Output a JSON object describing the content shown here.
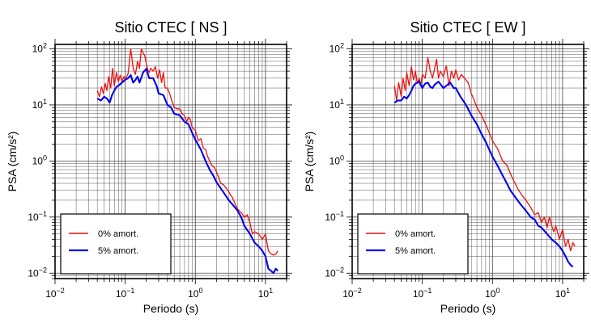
{
  "chart_data": [
    {
      "type": "line",
      "title": "Sitio CTEC [ NS ]",
      "xlabel": "Periodo (s)",
      "ylabel": "PSA (cm/s²)",
      "x_scale": "log",
      "y_scale": "log",
      "xlim": [
        0.01,
        20
      ],
      "ylim": [
        0.008,
        120
      ],
      "grid": true,
      "legend_position": "bottom-left",
      "x_ticks": [
        {
          "value": 0.01,
          "base": "10",
          "exp": "−2"
        },
        {
          "value": 0.1,
          "base": "10",
          "exp": "−1"
        },
        {
          "value": 1,
          "base": "10",
          "exp": "0"
        },
        {
          "value": 10,
          "base": "10",
          "exp": "1"
        }
      ],
      "y_ticks": [
        {
          "value": 0.01,
          "base": "10",
          "exp": "−2"
        },
        {
          "value": 0.1,
          "base": "10",
          "exp": "−1"
        },
        {
          "value": 1,
          "base": "10",
          "exp": "0"
        },
        {
          "value": 10,
          "base": "10",
          "exp": "1"
        },
        {
          "value": 100,
          "base": "10",
          "exp": "2"
        }
      ],
      "series": [
        {
          "name": "0% amort.",
          "color": "#ee1111",
          "x": [
            0.04,
            0.043,
            0.046,
            0.049,
            0.052,
            0.055,
            0.058,
            0.062,
            0.066,
            0.07,
            0.075,
            0.08,
            0.085,
            0.09,
            0.096,
            0.1,
            0.11,
            0.12,
            0.13,
            0.14,
            0.15,
            0.16,
            0.17,
            0.18,
            0.19,
            0.2,
            0.21,
            0.22,
            0.23,
            0.25,
            0.27,
            0.29,
            0.31,
            0.33,
            0.35,
            0.37,
            0.4,
            0.43,
            0.46,
            0.5,
            0.55,
            0.6,
            0.65,
            0.7,
            0.75,
            0.8,
            0.85,
            0.9,
            1.0,
            1.1,
            1.2,
            1.3,
            1.4,
            1.5,
            1.7,
            1.9,
            2.1,
            2.3,
            2.5,
            2.8,
            3.1,
            3.4,
            3.7,
            4.0,
            4.5,
            5.0,
            5.5,
            6.0,
            6.5,
            7.0,
            8.0,
            9.0,
            10.0,
            11.0,
            12.0,
            13.0,
            14.0,
            15.0
          ],
          "y": [
            18,
            14,
            21,
            16,
            24,
            18,
            32,
            20,
            45,
            22,
            38,
            26,
            34,
            26,
            32,
            28,
            36,
            100,
            45,
            35,
            60,
            45,
            100,
            85,
            75,
            55,
            42,
            38,
            45,
            40,
            48,
            30,
            42,
            25,
            38,
            20,
            20,
            16,
            12,
            9,
            8.5,
            8.5,
            7,
            6.5,
            5,
            6,
            5.5,
            4,
            3.5,
            2.3,
            2.5,
            1.7,
            1.6,
            1.2,
            0.85,
            0.75,
            0.55,
            0.4,
            0.38,
            0.32,
            0.26,
            0.22,
            0.17,
            0.14,
            0.12,
            0.1,
            0.11,
            0.08,
            0.05,
            0.055,
            0.05,
            0.04,
            0.05,
            0.025,
            0.022,
            0.021,
            0.022,
            0.025
          ]
        },
        {
          "name": "5% amort.",
          "color": "#0000ee",
          "x": [
            0.04,
            0.045,
            0.05,
            0.055,
            0.06,
            0.065,
            0.07,
            0.075,
            0.08,
            0.09,
            0.1,
            0.11,
            0.12,
            0.13,
            0.14,
            0.15,
            0.16,
            0.18,
            0.2,
            0.22,
            0.25,
            0.28,
            0.3,
            0.35,
            0.4,
            0.45,
            0.5,
            0.6,
            0.7,
            0.8,
            0.9,
            1.0,
            1.2,
            1.4,
            1.6,
            1.8,
            2.0,
            2.5,
            3.0,
            3.5,
            4.0,
            4.5,
            5.0,
            6.0,
            7.0,
            8.0,
            9.0,
            10.0,
            11.0,
            12.0,
            13.0,
            14.0,
            15.0
          ],
          "y": [
            13,
            12,
            14,
            13,
            11,
            15,
            18,
            21,
            22,
            25,
            28,
            30,
            34,
            25,
            28,
            32,
            25,
            38,
            44,
            30,
            30,
            22,
            16,
            15,
            10,
            9,
            7,
            6.5,
            5,
            4.5,
            3.2,
            2.4,
            1.6,
            1.0,
            0.7,
            0.55,
            0.42,
            0.28,
            0.2,
            0.16,
            0.13,
            0.1,
            0.07,
            0.05,
            0.035,
            0.03,
            0.025,
            0.02,
            0.012,
            0.011,
            0.01,
            0.012,
            0.011
          ]
        }
      ]
    },
    {
      "type": "line",
      "title": "Sitio CTEC [ EW ]",
      "xlabel": "Periodo (s)",
      "ylabel": "PSA (cm/s²)",
      "x_scale": "log",
      "y_scale": "log",
      "xlim": [
        0.01,
        20
      ],
      "ylim": [
        0.008,
        120
      ],
      "grid": true,
      "legend_position": "bottom-left",
      "x_ticks": [
        {
          "value": 0.01,
          "base": "10",
          "exp": "−2"
        },
        {
          "value": 0.1,
          "base": "10",
          "exp": "−1"
        },
        {
          "value": 1,
          "base": "10",
          "exp": "0"
        },
        {
          "value": 10,
          "base": "10",
          "exp": "1"
        }
      ],
      "y_ticks": [
        {
          "value": 0.01,
          "base": "10",
          "exp": "−2"
        },
        {
          "value": 0.1,
          "base": "10",
          "exp": "−1"
        },
        {
          "value": 1,
          "base": "10",
          "exp": "0"
        },
        {
          "value": 10,
          "base": "10",
          "exp": "1"
        },
        {
          "value": 100,
          "base": "10",
          "exp": "2"
        }
      ],
      "series": [
        {
          "name": "0% amort.",
          "color": "#ee1111",
          "x": [
            0.04,
            0.043,
            0.046,
            0.05,
            0.053,
            0.057,
            0.06,
            0.065,
            0.07,
            0.075,
            0.08,
            0.085,
            0.09,
            0.095,
            0.1,
            0.11,
            0.12,
            0.13,
            0.14,
            0.15,
            0.16,
            0.17,
            0.18,
            0.2,
            0.22,
            0.24,
            0.26,
            0.28,
            0.3,
            0.33,
            0.36,
            0.4,
            0.45,
            0.5,
            0.55,
            0.6,
            0.7,
            0.8,
            0.9,
            1.0,
            1.2,
            1.4,
            1.6,
            1.8,
            2.0,
            2.3,
            2.6,
            3.0,
            3.5,
            4.0,
            4.5,
            5.0,
            5.5,
            6.0,
            6.5,
            7.0,
            7.5,
            8.0,
            9.0,
            10.0,
            11.0,
            12.0,
            13.0,
            14.0,
            15.0
          ],
          "y": [
            22,
            12,
            25,
            14,
            30,
            18,
            38,
            22,
            48,
            28,
            40,
            24,
            30,
            22,
            35,
            30,
            70,
            40,
            30,
            45,
            65,
            30,
            40,
            32,
            50,
            22,
            40,
            30,
            42,
            28,
            35,
            30,
            25,
            16,
            12,
            9,
            6.5,
            4.5,
            3.2,
            2.3,
            1.6,
            1.0,
            0.85,
            0.6,
            0.45,
            0.32,
            0.25,
            0.2,
            0.15,
            0.11,
            0.12,
            0.08,
            0.1,
            0.065,
            0.1,
            0.07,
            0.055,
            0.07,
            0.04,
            0.06,
            0.03,
            0.04,
            0.025,
            0.035,
            0.03
          ]
        },
        {
          "name": "5% amort.",
          "color": "#0000ee",
          "x": [
            0.04,
            0.045,
            0.05,
            0.055,
            0.06,
            0.065,
            0.07,
            0.075,
            0.08,
            0.09,
            0.1,
            0.11,
            0.12,
            0.13,
            0.14,
            0.15,
            0.17,
            0.2,
            0.22,
            0.25,
            0.28,
            0.3,
            0.35,
            0.4,
            0.45,
            0.5,
            0.6,
            0.7,
            0.8,
            0.9,
            1.0,
            1.2,
            1.4,
            1.6,
            1.8,
            2.0,
            2.5,
            3.0,
            3.5,
            4.0,
            4.5,
            5.0,
            6.0,
            7.0,
            8.0,
            9.0,
            10.0,
            11.0,
            12.0,
            13.0,
            14.0
          ],
          "y": [
            11,
            12,
            12,
            14,
            13,
            15,
            18,
            22,
            24,
            26,
            20,
            24,
            25,
            21,
            20,
            23,
            26,
            20,
            22,
            25,
            20,
            20,
            14,
            11,
            8.5,
            6.5,
            4.5,
            3.0,
            2.2,
            1.6,
            1.2,
            0.8,
            0.55,
            0.4,
            0.3,
            0.25,
            0.17,
            0.13,
            0.1,
            0.09,
            0.07,
            0.065,
            0.05,
            0.04,
            0.035,
            0.03,
            0.025,
            0.02,
            0.016,
            0.014,
            0.013
          ]
        }
      ]
    }
  ]
}
